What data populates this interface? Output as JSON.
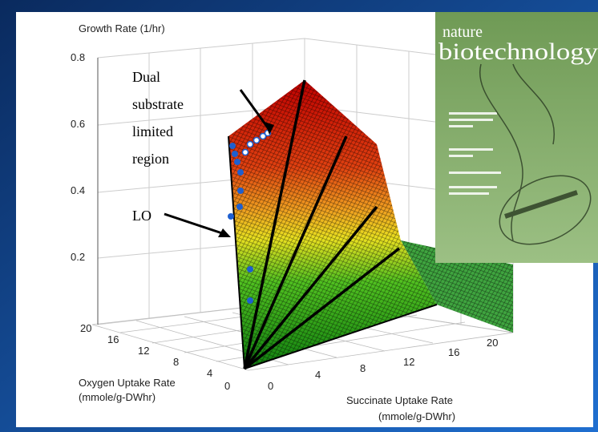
{
  "figure": {
    "z_axis": {
      "label": "Growth Rate (1/hr)",
      "ticks": [
        0.8,
        0.6,
        0.4,
        0.2
      ]
    },
    "oxygen_axis": {
      "label_lines": [
        "Oxygen Uptake Rate",
        "(mmole/g-DWhr)"
      ],
      "ticks": [
        20,
        16,
        12,
        8,
        4,
        0
      ]
    },
    "succinate_axis": {
      "label_lines": [
        "Succinate Uptake Rate",
        "(mmole/g-DWhr)"
      ],
      "ticks": [
        0,
        4,
        8,
        12,
        16,
        20
      ]
    },
    "annotations": {
      "dual_region": [
        "Dual",
        "substrate",
        "limited",
        "region"
      ],
      "lo": "LO"
    }
  },
  "cover": {
    "journal_lines": [
      "nature",
      "biotechnology"
    ]
  }
}
